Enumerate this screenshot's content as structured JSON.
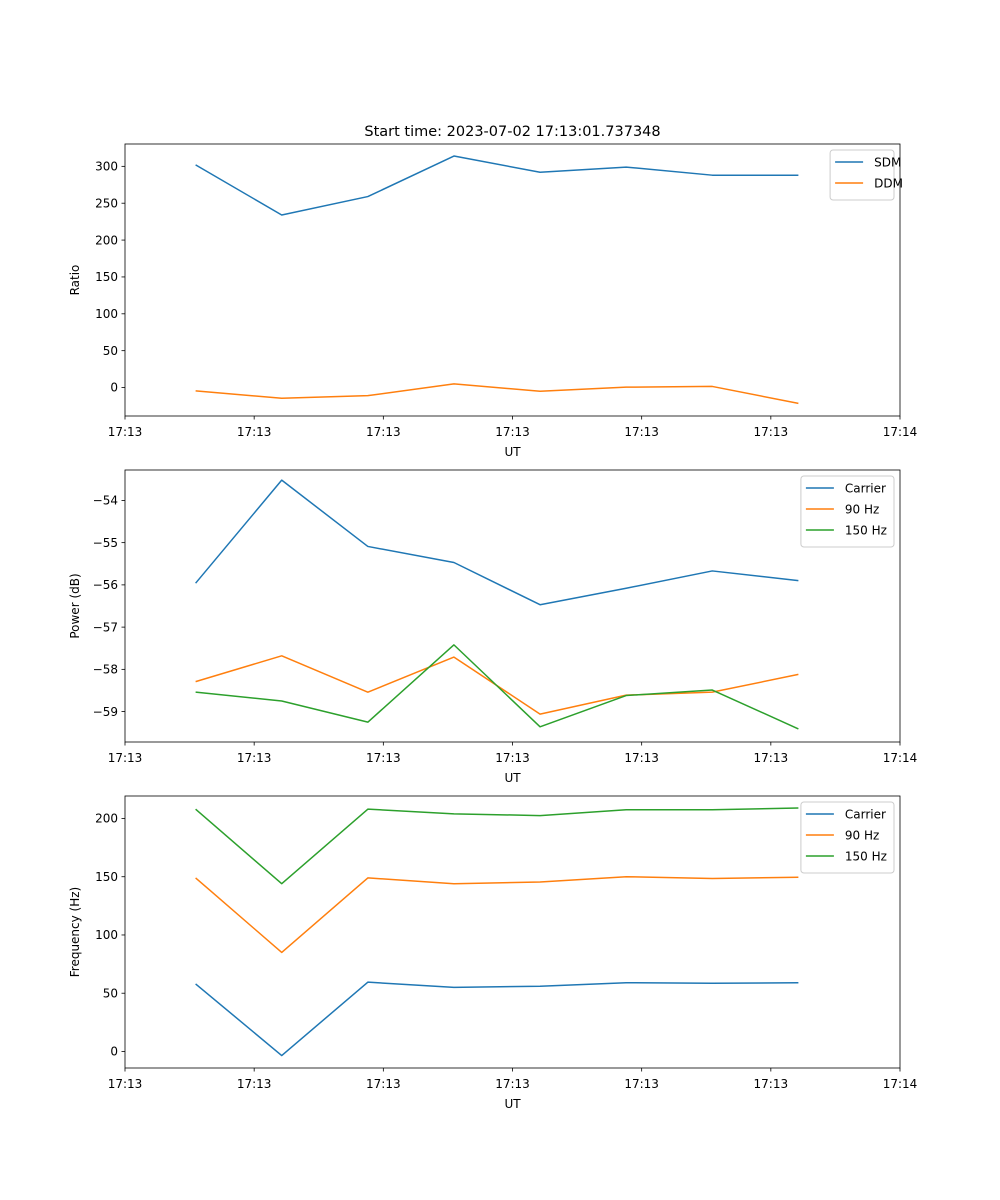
{
  "figure": {
    "title": "Start time: 2023-07-02 17:13:01.737348"
  },
  "chart_data": [
    {
      "type": "line",
      "title": "Start time: 2023-07-02 17:13:01.737348",
      "xlabel": "UT",
      "ylabel": "Ratio",
      "x": [
        1,
        2,
        3,
        4,
        5,
        6,
        7,
        8
      ],
      "xlim": [
        0.18,
        9.18
      ],
      "xticks": [
        0.18,
        1.68,
        3.18,
        4.68,
        6.18,
        7.68,
        9.18
      ],
      "xtick_labels": [
        "17:13",
        "17:13",
        "17:13",
        "17:13",
        "17:13",
        "17:13",
        "17:14"
      ],
      "ylim": [
        -38.6,
        330.3
      ],
      "yticks": [
        0,
        50,
        100,
        150,
        200,
        250,
        300
      ],
      "ytick_labels": [
        "0",
        "50",
        "100",
        "150",
        "200",
        "250",
        "300"
      ],
      "legend": "top-right",
      "series": [
        {
          "name": "SDM",
          "color": "#1f77b4",
          "values": [
            302,
            234,
            259,
            314,
            292,
            299,
            288,
            288
          ]
        },
        {
          "name": "DDM",
          "color": "#ff7f0e",
          "values": [
            -4.5,
            -14.5,
            -11,
            5,
            -5,
            0.5,
            1.5,
            -21.5
          ]
        }
      ]
    },
    {
      "type": "line",
      "title": "",
      "xlabel": "UT",
      "ylabel": "Power (dB)",
      "x": [
        1,
        2,
        3,
        4,
        5,
        6,
        7,
        8
      ],
      "xlim": [
        0.18,
        9.18
      ],
      "xticks": [
        0.18,
        1.68,
        3.18,
        4.68,
        6.18,
        7.68,
        9.18
      ],
      "xtick_labels": [
        "17:13",
        "17:13",
        "17:13",
        "17:13",
        "17:13",
        "17:13",
        "17:14"
      ],
      "ylim": [
        -59.72,
        -53.28
      ],
      "yticks": [
        -59,
        -58,
        -57,
        -56,
        -55,
        -54
      ],
      "ytick_labels": [
        "−59",
        "−58",
        "−57",
        "−56",
        "−55",
        "−54"
      ],
      "legend": "top-right",
      "series": [
        {
          "name": "Carrier",
          "color": "#1f77b4",
          "values": [
            -55.96,
            -53.52,
            -55.09,
            -55.47,
            -56.47,
            -56.08,
            -55.67,
            -55.9
          ]
        },
        {
          "name": "90 Hz",
          "color": "#ff7f0e",
          "values": [
            -58.29,
            -57.68,
            -58.54,
            -57.71,
            -59.06,
            -58.61,
            -58.54,
            -58.12
          ]
        },
        {
          "name": "150 Hz",
          "color": "#2ca02c",
          "values": [
            -58.54,
            -58.75,
            -59.25,
            -57.42,
            -59.36,
            -58.62,
            -58.49,
            -59.41
          ]
        }
      ]
    },
    {
      "type": "line",
      "title": "",
      "xlabel": "UT",
      "ylabel": "Frequency (Hz)",
      "x": [
        1,
        2,
        3,
        4,
        5,
        6,
        7,
        8
      ],
      "xlim": [
        0.18,
        9.18
      ],
      "xticks": [
        0.18,
        1.68,
        3.18,
        4.68,
        6.18,
        7.68,
        9.18
      ],
      "xtick_labels": [
        "17:13",
        "17:13",
        "17:13",
        "17:13",
        "17:13",
        "17:13",
        "17:14"
      ],
      "ylim": [
        -14.2,
        219.3
      ],
      "yticks": [
        0,
        50,
        100,
        150,
        200
      ],
      "ytick_labels": [
        "0",
        "50",
        "100",
        "150",
        "200"
      ],
      "legend": "top-right",
      "series": [
        {
          "name": "Carrier",
          "color": "#1f77b4",
          "values": [
            58,
            -3.5,
            59.5,
            55,
            56,
            59,
            58.5,
            59
          ]
        },
        {
          "name": "90 Hz",
          "color": "#ff7f0e",
          "values": [
            149,
            85,
            149,
            144,
            145.5,
            150,
            148.5,
            149.5
          ]
        },
        {
          "name": "150 Hz",
          "color": "#2ca02c",
          "values": [
            208,
            144,
            208,
            204,
            202.5,
            207.5,
            207.5,
            209
          ]
        }
      ]
    }
  ]
}
